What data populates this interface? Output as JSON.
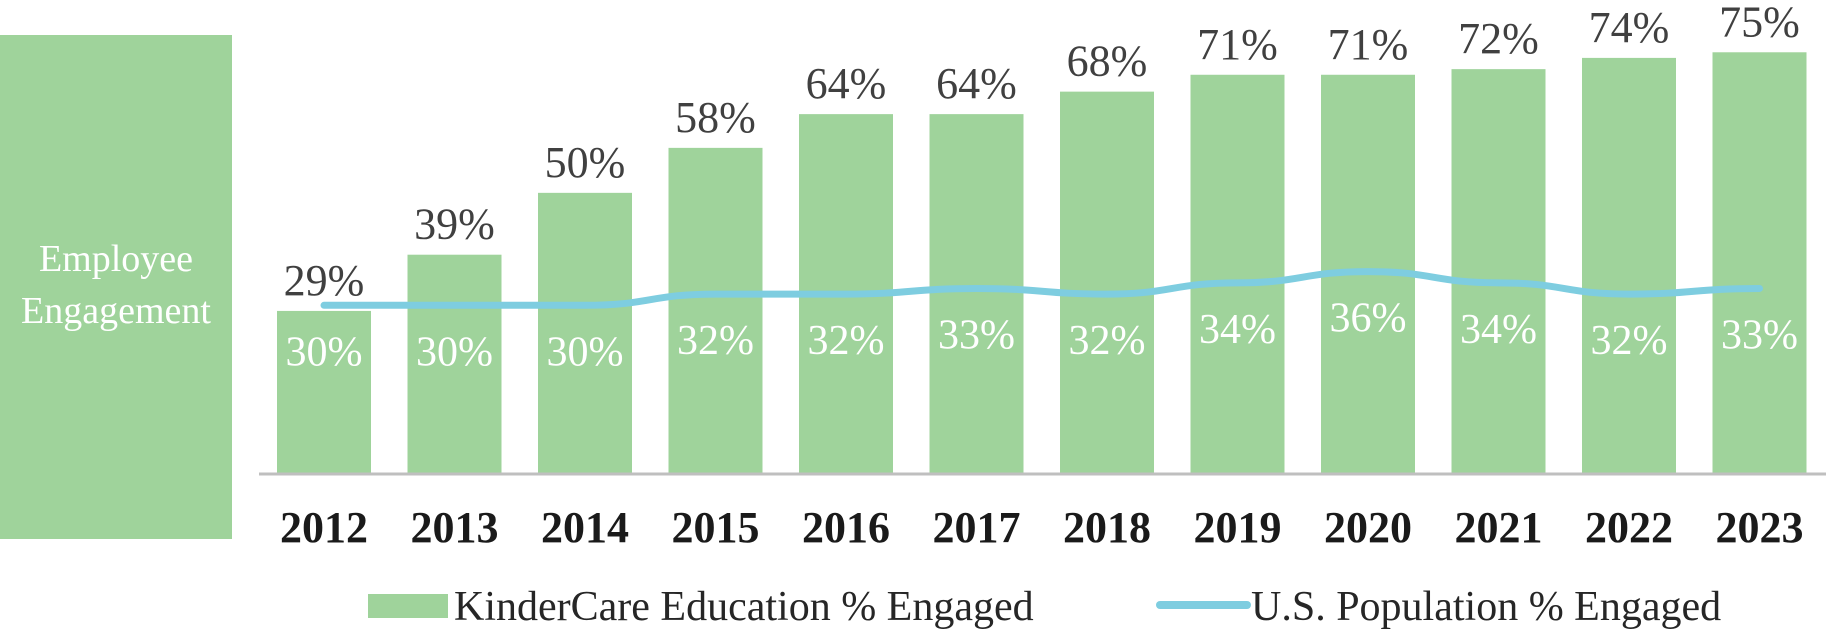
{
  "side_panel": {
    "label_line1": "Employee",
    "label_line2": "Engagement"
  },
  "chart_data": {
    "type": "bar",
    "title": "",
    "xlabel": "",
    "ylabel": "",
    "categories": [
      "2012",
      "2013",
      "2014",
      "2015",
      "2016",
      "2017",
      "2018",
      "2019",
      "2020",
      "2021",
      "2022",
      "2023"
    ],
    "ylim": [
      0,
      100
    ],
    "grid": false,
    "legend_position": "bottom",
    "series": [
      {
        "name": "KinderCare Education % Engaged",
        "kind": "bar",
        "color": "#9fd39b",
        "values": [
          29,
          39,
          50,
          58,
          64,
          64,
          68,
          71,
          71,
          72,
          74,
          75
        ],
        "labels": [
          "29%",
          "39%",
          "50%",
          "58%",
          "64%",
          "64%",
          "68%",
          "71%",
          "71%",
          "72%",
          "74%",
          "75%"
        ]
      },
      {
        "name": "U.S. Population % Engaged",
        "kind": "line",
        "color": "#7ecde0",
        "values": [
          30,
          30,
          30,
          32,
          32,
          33,
          32,
          34,
          36,
          34,
          32,
          33
        ],
        "labels": [
          "30%",
          "30%",
          "30%",
          "32%",
          "32%",
          "33%",
          "32%",
          "34%",
          "36%",
          "34%",
          "32%",
          "33%"
        ]
      }
    ]
  },
  "colors": {
    "panel": "#9fd39b",
    "axis": "#bfbfbf"
  }
}
